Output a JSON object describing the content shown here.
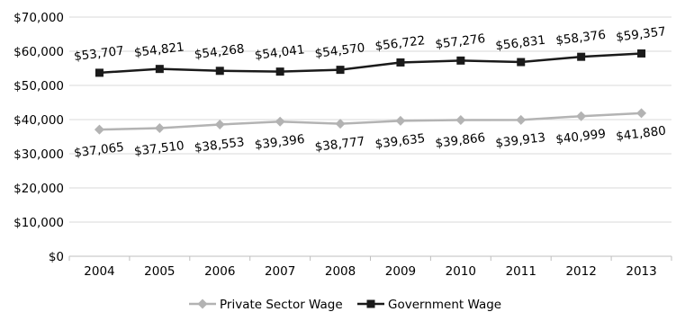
{
  "chart_data": {
    "type": "line",
    "title": "",
    "xlabel": "",
    "ylabel": "",
    "categories": [
      "2004",
      "2005",
      "2006",
      "2007",
      "2008",
      "2009",
      "2010",
      "2011",
      "2012",
      "2013"
    ],
    "ylim": [
      0,
      70000
    ],
    "yticks": [
      "$0",
      "$10,000",
      "$20,000",
      "$30,000",
      "$40,000",
      "$50,000",
      "$60,000",
      "$70,000"
    ],
    "grid": "horizontal",
    "legend": "bottom",
    "series": [
      {
        "name": "Private Sector Wage",
        "color": "#b3b3b3",
        "marker": "diamond",
        "label_position": "below",
        "values": [
          37065,
          37510,
          38553,
          39396,
          38777,
          39635,
          39866,
          39913,
          40999,
          41880
        ],
        "labels": [
          "$37,065",
          "$37,510",
          "$38,553",
          "$39,396",
          "$38,777",
          "$39,635",
          "$39,866",
          "$39,913",
          "$40,999",
          "$41,880"
        ]
      },
      {
        "name": "Government Wage",
        "color": "#1a1a1a",
        "marker": "square",
        "label_position": "above",
        "values": [
          53707,
          54821,
          54268,
          54041,
          54570,
          56722,
          57276,
          56831,
          58376,
          59357
        ],
        "labels": [
          "$53,707",
          "$54,821",
          "$54,268",
          "$54,041",
          "$54,570",
          "$56,722",
          "$57,276",
          "$56,831",
          "$58,376",
          "$59,357"
        ]
      }
    ]
  }
}
